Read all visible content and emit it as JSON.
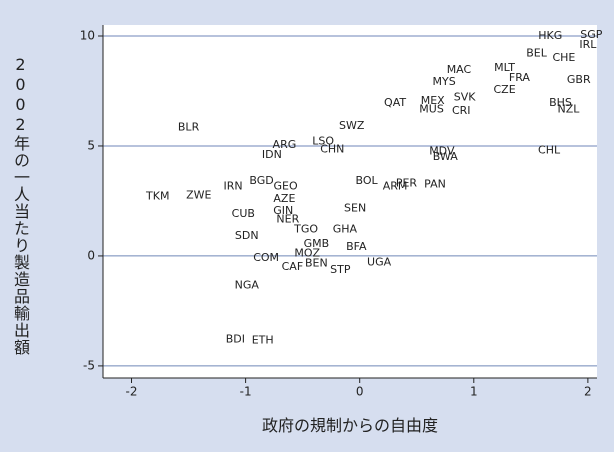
{
  "chart_data": {
    "type": "scatter",
    "xlabel": "政府の規制からの自由度",
    "ylabel": "2002年の一人当たり製造品輸出額",
    "labels": [
      "HKG",
      "SGP",
      "IRL",
      "BEL",
      "CHE",
      "GBR",
      "MAC",
      "MLT",
      "MYS",
      "FRA",
      "CZE",
      "QAT",
      "MEX",
      "SVK",
      "MUS",
      "CRI",
      "BHS",
      "NZL",
      "CHL",
      "BLR",
      "ARG",
      "LSO",
      "CHN",
      "IDN",
      "SWZ",
      "MDV",
      "BWA",
      "BOL",
      "ARM",
      "PER",
      "PAN",
      "TKM",
      "ZWE",
      "IRN",
      "BGD",
      "GEO",
      "CUB",
      "SDN",
      "GIN",
      "AZE",
      "SEN",
      "NER",
      "TGO",
      "GHA",
      "COM",
      "MOZ",
      "GMB",
      "BFA",
      "CAF",
      "BEN",
      "STP",
      "UGA",
      "NGA",
      "BDI",
      "ETH"
    ],
    "x": [
      1.67,
      2.03,
      2.0,
      1.55,
      1.79,
      1.92,
      0.87,
      1.27,
      0.74,
      1.4,
      1.27,
      0.31,
      0.64,
      0.92,
      0.63,
      0.89,
      1.76,
      1.83,
      1.66,
      -1.5,
      -0.66,
      -0.32,
      -0.24,
      -0.77,
      -0.07,
      0.72,
      0.75,
      0.06,
      0.31,
      0.41,
      0.66,
      -1.77,
      -1.41,
      -1.11,
      -0.86,
      -0.65,
      -1.02,
      -0.99,
      -0.67,
      -0.66,
      -0.04,
      -0.63,
      -0.47,
      -0.13,
      -0.82,
      -0.46,
      -0.38,
      -0.03,
      -0.59,
      -0.38,
      -0.17,
      0.17,
      -0.99,
      -1.09,
      -0.85
    ],
    "y": [
      10.0,
      10.05,
      9.6,
      9.2,
      9.0,
      8.0,
      8.45,
      8.55,
      7.9,
      8.1,
      7.55,
      6.95,
      7.05,
      7.2,
      6.65,
      6.6,
      6.95,
      6.65,
      4.8,
      5.85,
      5.05,
      5.2,
      4.85,
      4.6,
      5.9,
      4.75,
      4.5,
      3.4,
      3.15,
      3.3,
      3.25,
      2.7,
      2.75,
      3.15,
      3.4,
      3.15,
      1.9,
      0.9,
      2.05,
      2.6,
      2.15,
      1.65,
      1.2,
      1.2,
      -0.1,
      0.1,
      0.55,
      0.4,
      -0.5,
      -0.35,
      -0.65,
      -0.3,
      -1.35,
      -3.8,
      -3.85
    ],
    "color": "#222222",
    "xlim": [
      -2.25,
      2.08
    ],
    "ylim": [
      -5.55,
      10.5
    ],
    "xticks": [
      -2,
      -1,
      0,
      1,
      2
    ],
    "yticks": [
      -5,
      0,
      5,
      10
    ],
    "grid": true
  }
}
